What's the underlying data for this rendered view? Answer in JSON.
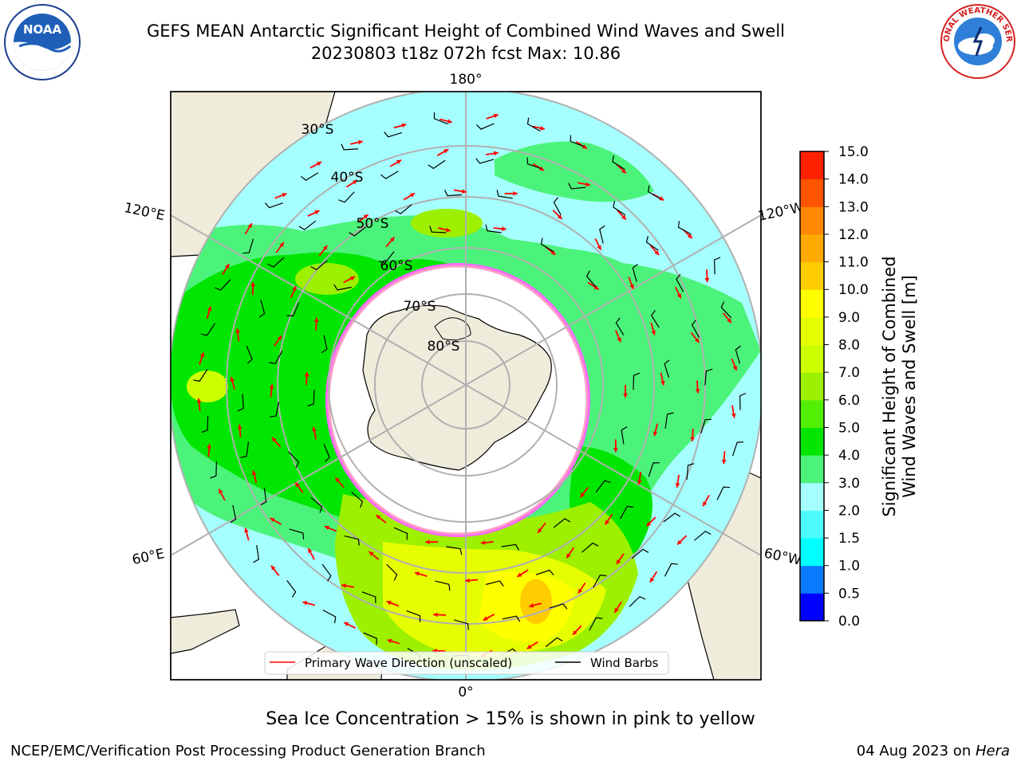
{
  "title_line1": "GEFS MEAN Antarctic Significant Height of Combined Wind Waves and Swell",
  "title_line2": "20230803 t18z 072h fcst   Max: 10.86",
  "map": {
    "projection": "south-polar-stereographic",
    "longitude_labels": {
      "top": "180°",
      "bottom": "0°",
      "left_upper": "120°E",
      "left_lower": "60°E",
      "right_upper": "120°W",
      "right_lower": "60°W"
    },
    "latitude_labels": [
      "30°S",
      "40°S",
      "50°S",
      "60°S",
      "70°S",
      "80°S"
    ],
    "legend": {
      "primary_wave": "Primary Wave Direction (unscaled)",
      "wind_barbs": "Wind Barbs"
    },
    "colors": {
      "land": "#efecdc",
      "ice": "#ffffff",
      "ocean_low": "#a6ffff",
      "ocean_mid": "#4cf37a",
      "ocean_high": "#ffff00"
    }
  },
  "colorbar": {
    "title_line1": "Significant Height of Combined",
    "title_line2": "Wind Waves and Swell [m]",
    "ticks": [
      "0.0",
      "0.5",
      "1.0",
      "1.5",
      "2.0",
      "3.0",
      "4.0",
      "5.0",
      "6.0",
      "7.0",
      "8.0",
      "9.0",
      "10.0",
      "11.0",
      "12.0",
      "13.0",
      "14.0",
      "15.0"
    ],
    "colors": [
      "#0000ff",
      "#0a7aff",
      "#00ffff",
      "#4cfcff",
      "#a6ffff",
      "#4cf37a",
      "#00e600",
      "#52f000",
      "#9cf000",
      "#ccff00",
      "#e6ff00",
      "#ffff00",
      "#ffcc00",
      "#ffaa00",
      "#ff8800",
      "#ff5500",
      "#ff2200"
    ]
  },
  "note": "Sea Ice Concentration > 15% is shown in pink to yellow",
  "footer_left": "NCEP/EMC/Verification Post Processing Product Generation Branch",
  "footer_date": "04 Aug 2023 on ",
  "footer_machine": "Hera",
  "logos": {
    "left": "NOAA",
    "right": "NATIONAL WEATHER SERVICE"
  }
}
